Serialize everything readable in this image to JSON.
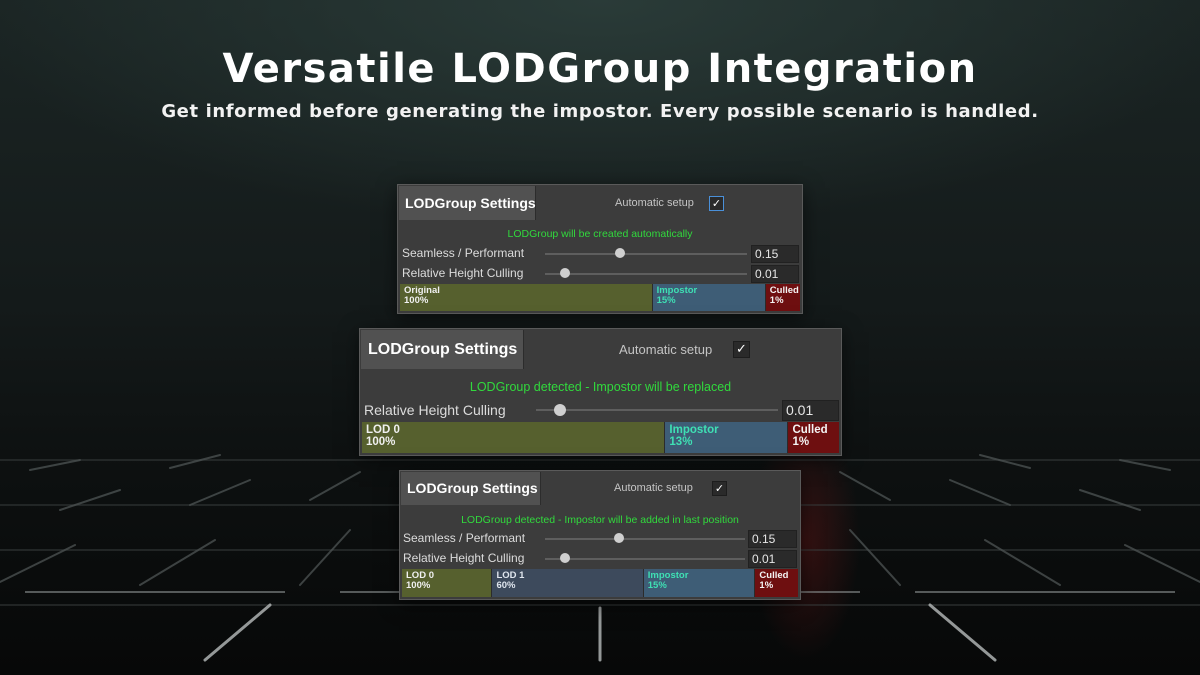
{
  "headline": "Versatile LODGroup Integration",
  "subline": "Get informed before generating the impostor. Every possible scenario is handled.",
  "colors": {
    "status_green": "#31d93d",
    "impostor_text": "#3fe0b4",
    "lod0_bg": "#56602e",
    "lod1_bg": "#3d4a5c",
    "impostor_bg": "#3e5d76",
    "culled_bg": "#6e0f10"
  },
  "panels": [
    {
      "title": "LODGroup Settings",
      "auto_label": "Automatic setup",
      "checked": true,
      "status": "LODGroup will be created automatically",
      "sliders": [
        {
          "label": "Seamless / Performant",
          "value": "0.15",
          "fraction": 0.37
        },
        {
          "label": "Relative Height Culling",
          "value": "0.01",
          "fraction": 0.1
        }
      ],
      "lods": [
        {
          "name": "Original",
          "percent": "100%",
          "share": 0.629
        },
        {
          "name": "Impostor",
          "percent": "15%",
          "share": 0.283
        },
        {
          "name": "Culled",
          "percent": "1%",
          "share": 0.088
        }
      ]
    },
    {
      "title": "LODGroup Settings",
      "auto_label": "Automatic setup",
      "checked": true,
      "status": "LODGroup detected - Impostor will be replaced",
      "sliders": [
        {
          "label": "Relative Height Culling",
          "value": "0.01",
          "fraction": 0.1
        }
      ],
      "lods": [
        {
          "name": "LOD 0",
          "percent": "100%",
          "share": 0.634
        },
        {
          "name": "Impostor",
          "percent": "13%",
          "share": 0.258
        },
        {
          "name": "Culled",
          "percent": "1%",
          "share": 0.108
        }
      ]
    },
    {
      "title": "LODGroup Settings",
      "auto_label": "Automatic setup",
      "checked": true,
      "status": "LODGroup detected - Impostor will be added in last position",
      "sliders": [
        {
          "label": "Seamless / Performant",
          "value": "0.15",
          "fraction": 0.37
        },
        {
          "label": "Relative Height Culling",
          "value": "0.01",
          "fraction": 0.1
        }
      ],
      "lods": [
        {
          "name": "LOD 0",
          "percent": "100%",
          "share": 0.226
        },
        {
          "name": "LOD 1",
          "percent": "60%",
          "share": 0.382
        },
        {
          "name": "Impostor",
          "percent": "15%",
          "share": 0.282
        },
        {
          "name": "Culled",
          "percent": "1%",
          "share": 0.11
        }
      ]
    }
  ]
}
